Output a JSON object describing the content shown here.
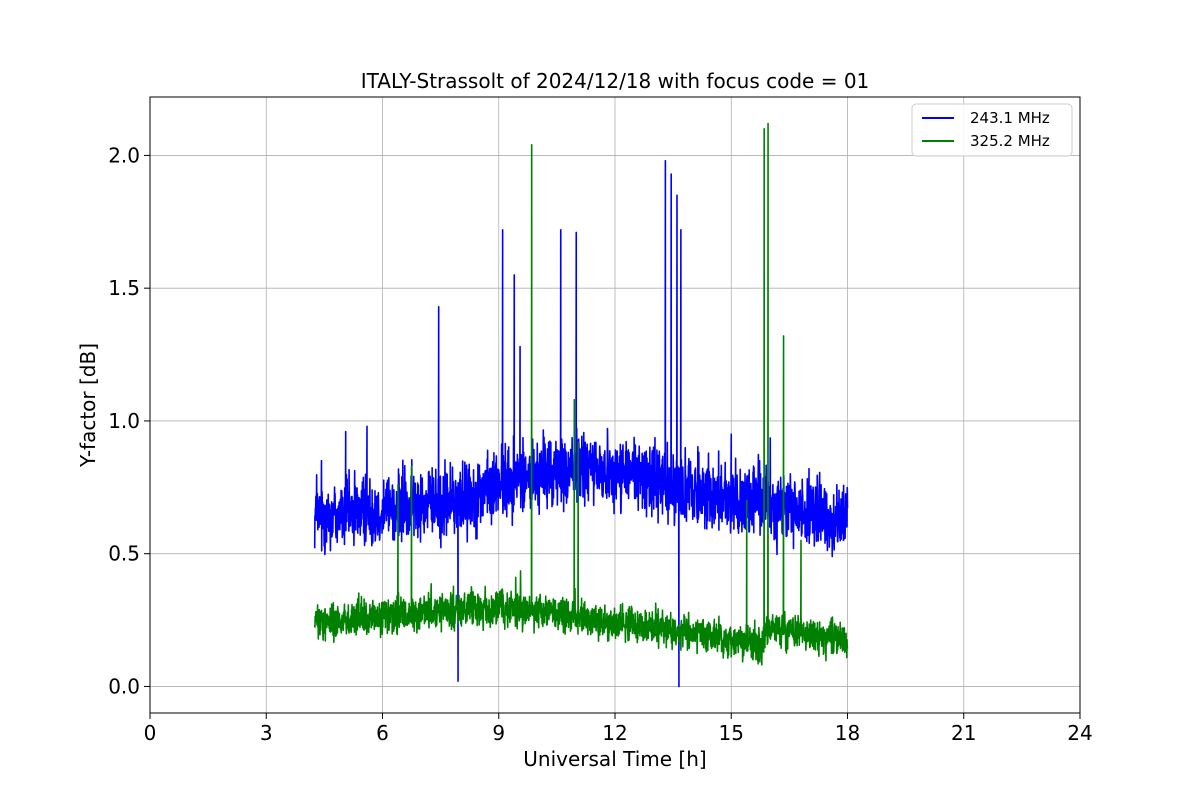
{
  "chart_data": {
    "type": "line",
    "title": "ITALY-Strassolt of 2024/12/18 with focus code = 01",
    "xlabel": "Universal Time [h]",
    "ylabel": "Y-factor [dB]",
    "xlim": [
      0,
      24
    ],
    "ylim": [
      -0.1,
      2.22
    ],
    "xticks": [
      0,
      3,
      6,
      9,
      12,
      15,
      18,
      21,
      24
    ],
    "yticks": [
      0.0,
      0.5,
      1.0,
      1.5,
      2.0
    ],
    "grid": true,
    "legend_position": "top-right",
    "series": [
      {
        "name": "243.1 MHz",
        "color": "#0000ff",
        "x_range": [
          4.25,
          18.0
        ],
        "baseline": [
          [
            4.25,
            0.64
          ],
          [
            6.0,
            0.67
          ],
          [
            8.0,
            0.7
          ],
          [
            9.0,
            0.76
          ],
          [
            10.0,
            0.8
          ],
          [
            11.0,
            0.82
          ],
          [
            12.5,
            0.8
          ],
          [
            14.0,
            0.74
          ],
          [
            16.0,
            0.69
          ],
          [
            18.0,
            0.62
          ]
        ],
        "noise": 0.1,
        "peaks": [
          {
            "x": 5.05,
            "y": 0.96
          },
          {
            "x": 5.6,
            "y": 0.98
          },
          {
            "x": 7.45,
            "y": 1.43
          },
          {
            "x": 7.95,
            "y": 0.02
          },
          {
            "x": 9.1,
            "y": 1.72
          },
          {
            "x": 9.4,
            "y": 1.55
          },
          {
            "x": 9.55,
            "y": 1.28
          },
          {
            "x": 10.6,
            "y": 1.72
          },
          {
            "x": 11.0,
            "y": 1.71
          },
          {
            "x": 13.3,
            "y": 1.98
          },
          {
            "x": 13.45,
            "y": 1.93
          },
          {
            "x": 13.6,
            "y": 1.85
          },
          {
            "x": 13.65,
            "y": 0.0
          },
          {
            "x": 13.7,
            "y": 1.72
          },
          {
            "x": 15.0,
            "y": 0.95
          }
        ]
      },
      {
        "name": "325.2 MHz",
        "color": "#008000",
        "x_range": [
          4.25,
          18.0
        ],
        "baseline": [
          [
            4.25,
            0.24
          ],
          [
            6.0,
            0.26
          ],
          [
            8.0,
            0.29
          ],
          [
            10.0,
            0.29
          ],
          [
            12.0,
            0.24
          ],
          [
            14.0,
            0.2
          ],
          [
            15.8,
            0.16
          ],
          [
            15.9,
            0.22
          ],
          [
            18.0,
            0.17
          ]
        ],
        "noise": 0.05,
        "peaks": [
          {
            "x": 6.4,
            "y": 0.76
          },
          {
            "x": 6.75,
            "y": 0.83
          },
          {
            "x": 9.85,
            "y": 2.04
          },
          {
            "x": 10.95,
            "y": 1.08
          },
          {
            "x": 11.05,
            "y": 0.92
          },
          {
            "x": 15.4,
            "y": 0.7
          },
          {
            "x": 15.85,
            "y": 2.1
          },
          {
            "x": 15.95,
            "y": 2.12
          },
          {
            "x": 16.35,
            "y": 1.32
          },
          {
            "x": 16.8,
            "y": 0.55
          }
        ]
      }
    ]
  }
}
